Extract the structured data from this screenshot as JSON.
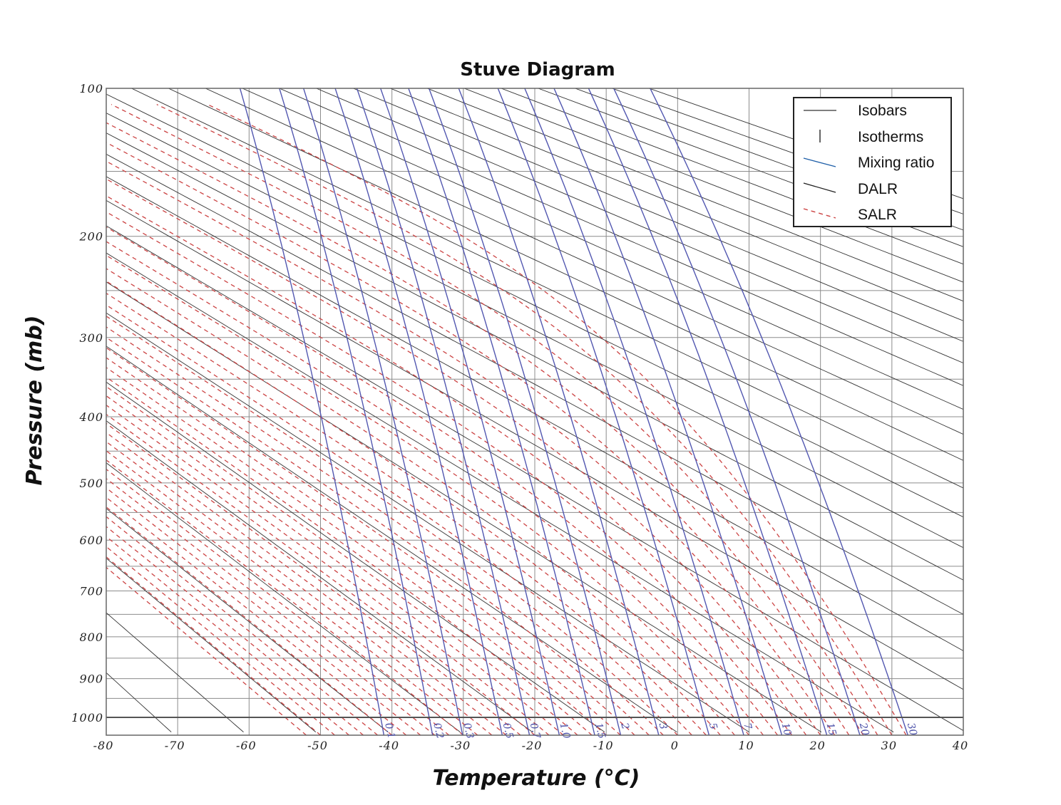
{
  "chart_data": {
    "type": "line",
    "title": "Stuve Diagram",
    "xlabel": "Temperature (°C)",
    "ylabel": "Pressure (mb)",
    "xlim": [
      -80,
      40
    ],
    "ylim": [
      1000,
      100
    ],
    "x_ticks": [
      -80,
      -70,
      -60,
      -50,
      -40,
      -30,
      -20,
      -10,
      0,
      10,
      20,
      30,
      40
    ],
    "y_ticks": [
      100,
      200,
      300,
      400,
      500,
      600,
      700,
      800,
      900,
      1000
    ],
    "y_scale": "pressure^0.286",
    "grid": true,
    "legend_position": "top-right",
    "legend": [
      "Isobars",
      "Isotherms",
      "Mixing ratio",
      "DALR",
      "SALR"
    ],
    "mixing_ratio_labels": [
      "0.1",
      "0.2",
      "0.3",
      "0.5",
      "0.7",
      "1.0",
      "1.5",
      "2",
      "3",
      "5",
      "7",
      "10",
      "15",
      "20",
      "30"
    ],
    "mixing_ratio_values": [
      0.1,
      0.2,
      0.3,
      0.5,
      0.7,
      1.0,
      1.5,
      2,
      3,
      5,
      7,
      10,
      15,
      20,
      30
    ],
    "colors": {
      "grid": "#8c8c8c",
      "dalr": "#333333",
      "mixing_ratio": "#5257b0",
      "salr": "#cc4444",
      "frame": "#555555"
    }
  }
}
